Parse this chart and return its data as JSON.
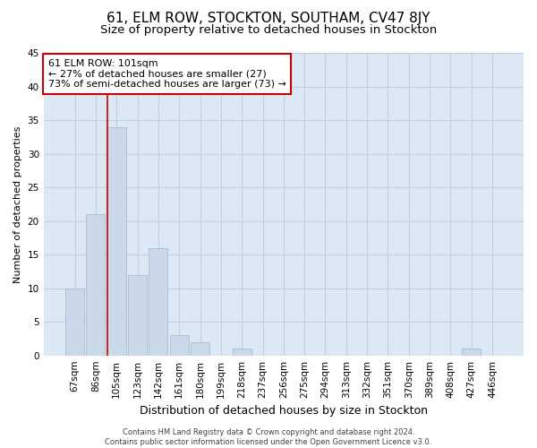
{
  "title": "61, ELM ROW, STOCKTON, SOUTHAM, CV47 8JY",
  "subtitle": "Size of property relative to detached houses in Stockton",
  "xlabel": "Distribution of detached houses by size in Stockton",
  "ylabel": "Number of detached properties",
  "footer_line1": "Contains HM Land Registry data © Crown copyright and database right 2024.",
  "footer_line2": "Contains public sector information licensed under the Open Government Licence v3.0.",
  "categories": [
    "67sqm",
    "86sqm",
    "105sqm",
    "123sqm",
    "142sqm",
    "161sqm",
    "180sqm",
    "199sqm",
    "218sqm",
    "237sqm",
    "256sqm",
    "275sqm",
    "294sqm",
    "313sqm",
    "332sqm",
    "351sqm",
    "370sqm",
    "389sqm",
    "408sqm",
    "427sqm",
    "446sqm"
  ],
  "values": [
    10,
    21,
    34,
    12,
    16,
    3,
    2,
    0,
    1,
    0,
    0,
    0,
    0,
    0,
    0,
    0,
    0,
    0,
    0,
    1,
    0
  ],
  "bar_color": "#c9d9e9",
  "bar_edge_color": "#a8bed4",
  "grid_color": "#c0d0e0",
  "vline_color": "#cc0000",
  "annotation_text": "61 ELM ROW: 101sqm\n← 27% of detached houses are smaller (27)\n73% of semi-detached houses are larger (73) →",
  "annotation_box_facecolor": "#ffffff",
  "annotation_box_edgecolor": "#cc0000",
  "ylim": [
    0,
    45
  ],
  "yticks": [
    0,
    5,
    10,
    15,
    20,
    25,
    30,
    35,
    40,
    45
  ],
  "background_color": "#dce8f4",
  "title_fontsize": 11,
  "subtitle_fontsize": 9.5,
  "tick_fontsize": 7.5,
  "ylabel_fontsize": 8,
  "xlabel_fontsize": 9
}
